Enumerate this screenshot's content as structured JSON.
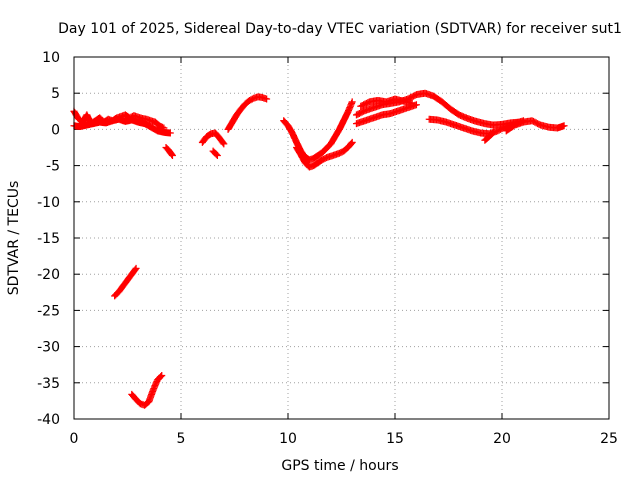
{
  "chart_data": {
    "type": "scatter",
    "title": "Day 101 of 2025, Sidereal Day-to-day VTEC variation (SDTVAR) for receiver sut1",
    "xlabel": "GPS time / hours",
    "ylabel": "SDTVAR / TECUs",
    "xlim": [
      0,
      25
    ],
    "ylim": [
      -40,
      10
    ],
    "xticks": [
      0,
      5,
      10,
      15,
      20,
      25
    ],
    "yticks": [
      10,
      5,
      0,
      -5,
      -10,
      -15,
      -20,
      -25,
      -30,
      -35,
      -40
    ],
    "grid": true,
    "marker": "+",
    "series_color": "#ff0000",
    "series": [
      {
        "name": "sdtvar",
        "segments": [
          {
            "x": [
              0.0,
              0.2,
              0.4,
              0.6,
              0.8,
              1.0,
              1.2,
              1.4,
              1.6,
              1.8,
              2.0,
              2.2,
              2.4,
              2.6,
              2.8,
              3.0,
              3.2,
              3.4,
              3.6,
              3.8,
              4.0,
              4.2
            ],
            "y": [
              2.5,
              1.5,
              1.0,
              2.0,
              0.8,
              1.2,
              1.6,
              1.0,
              1.4,
              1.2,
              1.6,
              1.8,
              2.0,
              1.6,
              1.9,
              1.7,
              1.5,
              1.4,
              1.2,
              1.0,
              0.5,
              0.2
            ]
          },
          {
            "x": [
              0.0,
              0.3,
              0.6,
              0.9,
              1.2,
              1.5,
              1.8,
              2.1,
              2.4,
              2.7,
              3.0,
              3.3,
              3.6,
              3.9,
              4.2,
              4.5
            ],
            "y": [
              0.5,
              0.4,
              0.6,
              0.8,
              1.0,
              0.9,
              1.2,
              1.4,
              1.1,
              1.3,
              1.0,
              0.8,
              0.3,
              -0.2,
              -0.4,
              -0.5
            ]
          },
          {
            "x": [
              4.3,
              4.4,
              4.5,
              4.6
            ],
            "y": [
              -2.5,
              -2.8,
              -3.2,
              -3.6
            ]
          },
          {
            "x": [
              6.0,
              6.2,
              6.4,
              6.6,
              6.8,
              7.0
            ],
            "y": [
              -1.8,
              -1.0,
              -0.6,
              -0.5,
              -1.2,
              -2.0
            ]
          },
          {
            "x": [
              6.5,
              6.7
            ],
            "y": [
              -3.0,
              -3.6
            ]
          },
          {
            "x": [
              7.2,
              7.4,
              7.6,
              7.8,
              8.0,
              8.2,
              8.4,
              8.6,
              8.8,
              9.0
            ],
            "y": [
              0.0,
              1.0,
              2.0,
              2.8,
              3.5,
              4.0,
              4.3,
              4.5,
              4.4,
              4.2
            ]
          },
          {
            "x": [
              9.8,
              10.0,
              10.2,
              10.4,
              10.6,
              10.8,
              11.0,
              11.2,
              11.4,
              11.6,
              11.8,
              12.0,
              12.2,
              12.4,
              12.6,
              12.8,
              13.0
            ],
            "y": [
              1.2,
              0.5,
              -0.5,
              -1.8,
              -3.0,
              -3.8,
              -4.2,
              -4.0,
              -3.6,
              -3.2,
              -2.6,
              -2.0,
              -1.0,
              0.0,
              1.2,
              2.4,
              3.8
            ]
          },
          {
            "x": [
              10.4,
              10.6,
              10.8,
              11.0,
              11.2,
              11.4,
              11.6,
              11.8,
              12.0,
              12.2,
              12.4,
              12.6,
              12.8,
              13.0
            ],
            "y": [
              -2.5,
              -3.5,
              -4.6,
              -5.2,
              -5.0,
              -4.6,
              -4.2,
              -3.9,
              -3.7,
              -3.5,
              -3.3,
              -3.0,
              -2.5,
              -1.8
            ]
          },
          {
            "x": [
              13.2,
              13.6,
              14.0,
              14.4,
              14.8,
              15.2,
              15.6,
              16.0,
              16.4,
              16.8,
              17.2,
              17.6,
              18.0,
              18.4,
              18.8,
              19.2,
              19.6,
              20.0,
              20.4,
              20.8
            ],
            "y": [
              2.0,
              2.6,
              3.0,
              3.4,
              3.6,
              3.8,
              4.2,
              4.8,
              5.0,
              4.6,
              3.8,
              2.8,
              2.0,
              1.5,
              1.1,
              0.8,
              0.6,
              0.7,
              0.9,
              1.0
            ]
          },
          {
            "x": [
              13.2,
              13.6,
              14.0,
              14.4,
              14.8,
              15.2,
              15.6,
              16.0
            ],
            "y": [
              0.8,
              1.2,
              1.6,
              2.0,
              2.2,
              2.6,
              3.0,
              3.4
            ]
          },
          {
            "x": [
              13.4,
              13.8,
              14.2,
              14.6,
              15.0,
              15.4,
              15.8
            ],
            "y": [
              3.2,
              3.8,
              4.0,
              3.8,
              4.2,
              3.9,
              3.6
            ]
          },
          {
            "x": [
              16.6,
              17.0,
              17.4,
              17.8,
              18.2,
              18.6,
              19.0,
              19.4,
              19.8,
              20.2,
              20.6,
              21.0
            ],
            "y": [
              1.4,
              1.3,
              1.0,
              0.6,
              0.2,
              -0.2,
              -0.5,
              -0.6,
              -0.2,
              0.4,
              0.8,
              1.2
            ]
          },
          {
            "x": [
              19.2,
              19.4,
              19.6
            ],
            "y": [
              -1.5,
              -1.0,
              -0.4
            ]
          },
          {
            "x": [
              20.2,
              20.6,
              21.0,
              21.4,
              21.8,
              22.2,
              22.6,
              22.9
            ],
            "y": [
              -0.2,
              0.6,
              1.0,
              1.2,
              0.6,
              0.3,
              0.2,
              0.5
            ]
          },
          {
            "x": [
              1.9,
              2.1,
              2.3,
              2.5,
              2.7,
              2.9
            ],
            "y": [
              -23.0,
              -22.4,
              -21.6,
              -20.8,
              -20.0,
              -19.2
            ]
          },
          {
            "x": [
              2.7,
              2.9,
              3.1,
              3.3,
              3.5,
              3.7,
              3.9,
              4.1
            ],
            "y": [
              -36.6,
              -37.3,
              -37.9,
              -38.1,
              -37.6,
              -36.0,
              -34.6,
              -34.0
            ]
          }
        ]
      }
    ]
  }
}
